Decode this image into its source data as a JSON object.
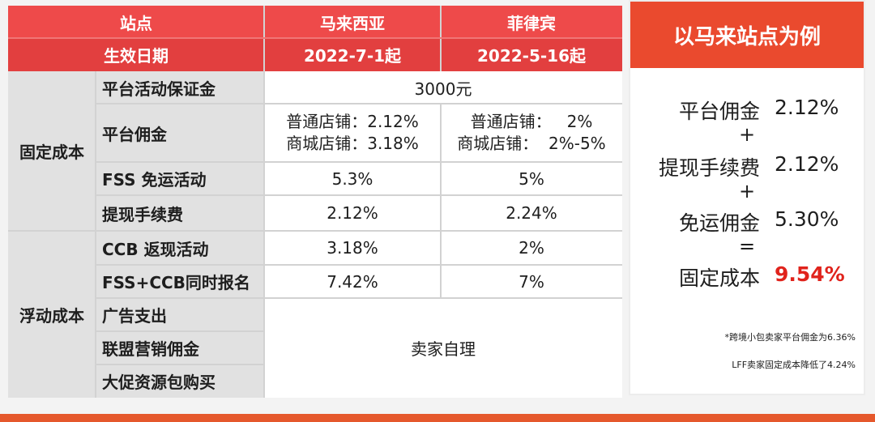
{
  "table": {
    "header": {
      "site_label": "站点",
      "my": "马来西亚",
      "ph": "菲律宾",
      "date_label": "生效日期",
      "my_date": "2022-7-1起",
      "ph_date": "2022-5-16起"
    },
    "fixed_label": "固定成本",
    "floating_label": "浮动成本",
    "rows": {
      "deposit": {
        "label": "平台活动保证金",
        "value": "3000元"
      },
      "commission": {
        "label": "平台佣金",
        "my_line1": "普通店铺：2.12%",
        "my_line2": "商城店铺：3.18%",
        "ph_line1": "普通店铺：   2%",
        "ph_line2": "商城店铺：  2%-5%"
      },
      "fss": {
        "label": "FSS 免运活动",
        "my": "5.3%",
        "ph": "5%"
      },
      "withdraw": {
        "label": "提现手续费",
        "my": "2.12%",
        "ph": "2.24%"
      },
      "ccb": {
        "label": "CCB 返现活动",
        "my": "3.18%",
        "ph": "2%"
      },
      "fss_ccb": {
        "label": "FSS+CCB同时报名",
        "my": "7.42%",
        "ph": "7%"
      },
      "ads": {
        "label": "广告支出"
      },
      "affiliate": {
        "label": "联盟营销佣金"
      },
      "promo": {
        "label": "大促资源包购买"
      },
      "self_managed": "卖家自理"
    }
  },
  "panel": {
    "title": "以马来站点为例",
    "items": [
      {
        "label": "平台佣金",
        "value": "2.12%"
      },
      {
        "label": "提现手续费",
        "value": "2.12%"
      },
      {
        "label": "免运佣金",
        "value": "5.30%"
      },
      {
        "label": "固定成本",
        "value": "9.54%"
      }
    ],
    "ops": [
      "+",
      "+",
      "="
    ],
    "note1": "*跨境小包卖家平台佣金为6.36%",
    "note2": "LFF卖家固定成本降低了4.24%"
  }
}
